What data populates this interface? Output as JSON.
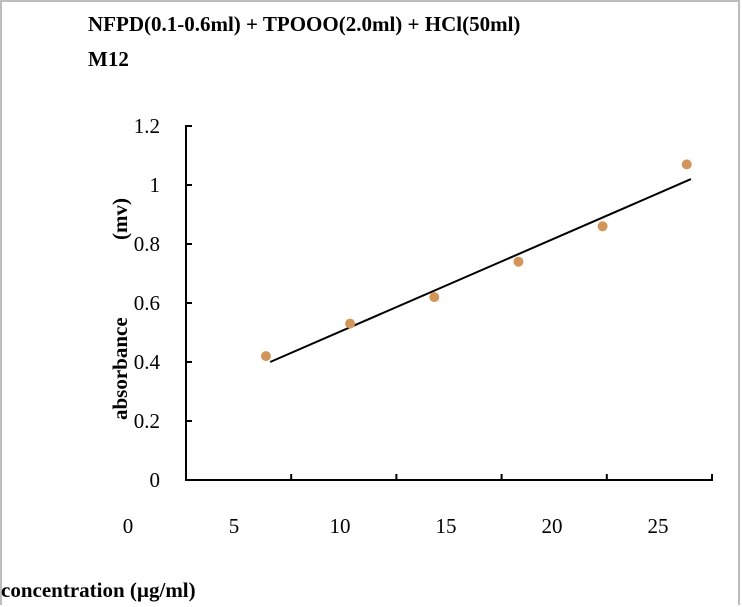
{
  "chart_data": {
    "type": "scatter",
    "title": "NFPD(0.1-0.6ml) + TPOOO(2.0ml) + HCl(50ml)",
    "subtitle": "M12",
    "xlabel": "concentration (µg/ml)",
    "ylabel": "absorbance",
    "ylabel_unit": "(mv)",
    "xlim": [
      0,
      25
    ],
    "ylim": [
      0,
      1.2
    ],
    "x_ticks": [
      "0",
      "5",
      "10",
      "15",
      "20",
      "25"
    ],
    "y_ticks": [
      "0",
      "0.2",
      "0.4",
      "0.6",
      "0.8",
      "1",
      "1.2"
    ],
    "grid": false,
    "legend": "none",
    "series": [
      {
        "x": [
          3.8,
          7.8,
          11.8,
          15.8,
          19.8,
          23.8
        ],
        "y": [
          0.42,
          0.53,
          0.62,
          0.74,
          0.86,
          1.07
        ]
      }
    ],
    "trendline": {
      "x": [
        4,
        24
      ],
      "y": [
        0.4,
        1.02
      ]
    },
    "colors": {
      "points": "#d2955a",
      "line": "#000000",
      "axis": "#000000"
    }
  }
}
